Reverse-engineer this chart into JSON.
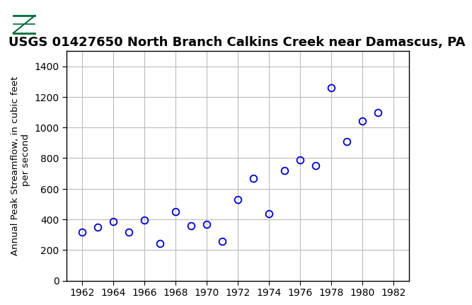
{
  "title": "USGS 01427650 North Branch Calkins Creek near Damascus, PA",
  "ylabel_line1": "Annual Peak Streamflow, in cubic feet",
  "ylabel_line2": "    per second",
  "years": [
    1962,
    1963,
    1964,
    1965,
    1966,
    1967,
    1968,
    1969,
    1970,
    1971,
    1972,
    1973,
    1974,
    1975,
    1976,
    1977,
    1978,
    1979,
    1980,
    1981
  ],
  "flows": [
    315,
    350,
    385,
    315,
    395,
    245,
    450,
    360,
    370,
    255,
    530,
    670,
    435,
    720,
    790,
    750,
    1260,
    910,
    1040,
    1100
  ],
  "xlim": [
    1961,
    1983
  ],
  "ylim": [
    0,
    1500
  ],
  "yticks": [
    0,
    200,
    400,
    600,
    800,
    1000,
    1200,
    1400
  ],
  "xticks": [
    1962,
    1964,
    1966,
    1968,
    1970,
    1972,
    1974,
    1976,
    1978,
    1980,
    1982
  ],
  "marker_color": "#0000cc",
  "marker_size": 7,
  "grid_color": "#bbbbbb",
  "background_color": "#ffffff",
  "header_color": "#006b3c",
  "title_fontsize": 13,
  "axis_label_fontsize": 9.5,
  "tick_fontsize": 10
}
